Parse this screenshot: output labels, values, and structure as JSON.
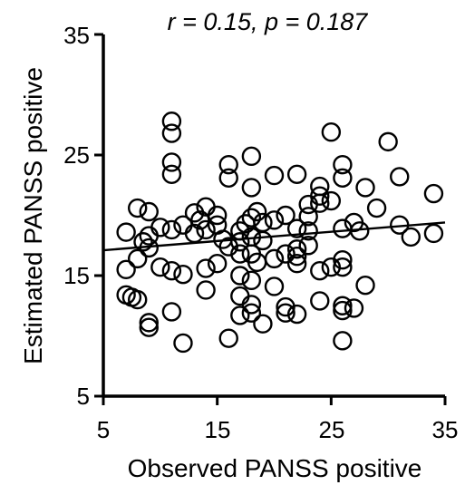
{
  "chart_data": {
    "type": "scatter",
    "title": "",
    "annotation": "r = 0.15, p = 0.187",
    "xlabel": "Observed PANSS positive",
    "ylabel": "Estimated PANSS positive",
    "xlim": [
      5,
      35
    ],
    "ylim": [
      5,
      35
    ],
    "xticks": [
      "5",
      "15",
      "25",
      "35"
    ],
    "yticks": [
      "5",
      "15",
      "25",
      "35"
    ],
    "grid": false,
    "legend": "none",
    "marker": "open-circle",
    "colors": {
      "marker": "#000000",
      "axis": "#000000",
      "fit_line": "#000000"
    },
    "fit_line": {
      "x": [
        5,
        35
      ],
      "y": [
        17.1,
        19.4
      ]
    },
    "points": [
      {
        "x": 11,
        "y": 27.8
      },
      {
        "x": 11,
        "y": 26.8
      },
      {
        "x": 11,
        "y": 24.4
      },
      {
        "x": 11,
        "y": 23.4
      },
      {
        "x": 30,
        "y": 26.1
      },
      {
        "x": 25,
        "y": 26.9
      },
      {
        "x": 18,
        "y": 24.9
      },
      {
        "x": 16,
        "y": 24.2
      },
      {
        "x": 26,
        "y": 24.2
      },
      {
        "x": 16,
        "y": 23.1
      },
      {
        "x": 18,
        "y": 22.3
      },
      {
        "x": 20,
        "y": 23.3
      },
      {
        "x": 22,
        "y": 23.4
      },
      {
        "x": 24,
        "y": 22.4
      },
      {
        "x": 24,
        "y": 21.6
      },
      {
        "x": 26,
        "y": 23.1
      },
      {
        "x": 31,
        "y": 23.2
      },
      {
        "x": 28,
        "y": 22.3
      },
      {
        "x": 34,
        "y": 21.8
      },
      {
        "x": 29,
        "y": 20.6
      },
      {
        "x": 8,
        "y": 20.6
      },
      {
        "x": 9,
        "y": 20.3
      },
      {
        "x": 13,
        "y": 20.2
      },
      {
        "x": 13.5,
        "y": 19.6
      },
      {
        "x": 14,
        "y": 20.7
      },
      {
        "x": 15,
        "y": 20.0
      },
      {
        "x": 12,
        "y": 19.2
      },
      {
        "x": 11,
        "y": 18.8
      },
      {
        "x": 7,
        "y": 18.6
      },
      {
        "x": 8.5,
        "y": 17.8
      },
      {
        "x": 9,
        "y": 18.3
      },
      {
        "x": 10,
        "y": 19.0
      },
      {
        "x": 13,
        "y": 18.5
      },
      {
        "x": 14,
        "y": 18.8
      },
      {
        "x": 15,
        "y": 19.2
      },
      {
        "x": 15.5,
        "y": 18.0
      },
      {
        "x": 16,
        "y": 17.4
      },
      {
        "x": 17,
        "y": 18.7
      },
      {
        "x": 17,
        "y": 17.8
      },
      {
        "x": 17.5,
        "y": 19.3
      },
      {
        "x": 18,
        "y": 18.2
      },
      {
        "x": 18,
        "y": 19.8
      },
      {
        "x": 18.5,
        "y": 20.3
      },
      {
        "x": 19,
        "y": 19.4
      },
      {
        "x": 19,
        "y": 17.9
      },
      {
        "x": 20,
        "y": 19.6
      },
      {
        "x": 21,
        "y": 20.0
      },
      {
        "x": 22,
        "y": 18.9
      },
      {
        "x": 22,
        "y": 17.2
      },
      {
        "x": 23,
        "y": 18.7
      },
      {
        "x": 23,
        "y": 19.9
      },
      {
        "x": 23,
        "y": 20.9
      },
      {
        "x": 24,
        "y": 21.0
      },
      {
        "x": 25,
        "y": 21.2
      },
      {
        "x": 26,
        "y": 18.9
      },
      {
        "x": 27,
        "y": 19.4
      },
      {
        "x": 27.5,
        "y": 18.7
      },
      {
        "x": 31,
        "y": 19.2
      },
      {
        "x": 32,
        "y": 18.2
      },
      {
        "x": 34,
        "y": 18.5
      },
      {
        "x": 17,
        "y": 16.8
      },
      {
        "x": 18,
        "y": 16.8
      },
      {
        "x": 18.5,
        "y": 16.1
      },
      {
        "x": 20,
        "y": 16.4
      },
      {
        "x": 21,
        "y": 16.8
      },
      {
        "x": 22,
        "y": 16.6
      },
      {
        "x": 22,
        "y": 16.0
      },
      {
        "x": 23,
        "y": 17.5
      },
      {
        "x": 24,
        "y": 15.4
      },
      {
        "x": 25,
        "y": 15.7
      },
      {
        "x": 26,
        "y": 16.3
      },
      {
        "x": 26,
        "y": 15.7
      },
      {
        "x": 8,
        "y": 16.4
      },
      {
        "x": 7,
        "y": 15.5
      },
      {
        "x": 9,
        "y": 17.3
      },
      {
        "x": 10,
        "y": 15.7
      },
      {
        "x": 11,
        "y": 15.4
      },
      {
        "x": 12,
        "y": 15.1
      },
      {
        "x": 14,
        "y": 15.6
      },
      {
        "x": 15,
        "y": 16.0
      },
      {
        "x": 17,
        "y": 15.0
      },
      {
        "x": 18,
        "y": 14.6
      },
      {
        "x": 20,
        "y": 14.1
      },
      {
        "x": 28,
        "y": 14.2
      },
      {
        "x": 7,
        "y": 13.4
      },
      {
        "x": 7.5,
        "y": 13.2
      },
      {
        "x": 8,
        "y": 13.0
      },
      {
        "x": 14,
        "y": 13.8
      },
      {
        "x": 17,
        "y": 13.3
      },
      {
        "x": 18,
        "y": 12.6
      },
      {
        "x": 11,
        "y": 12.0
      },
      {
        "x": 17,
        "y": 11.7
      },
      {
        "x": 18,
        "y": 11.9
      },
      {
        "x": 21,
        "y": 12.4
      },
      {
        "x": 21,
        "y": 11.9
      },
      {
        "x": 22,
        "y": 11.8
      },
      {
        "x": 24,
        "y": 12.9
      },
      {
        "x": 26,
        "y": 12.5
      },
      {
        "x": 26,
        "y": 12.1
      },
      {
        "x": 27,
        "y": 12.3
      },
      {
        "x": 9,
        "y": 11.1
      },
      {
        "x": 9,
        "y": 10.7
      },
      {
        "x": 19,
        "y": 11.0
      },
      {
        "x": 16,
        "y": 9.8
      },
      {
        "x": 12,
        "y": 9.4
      },
      {
        "x": 26,
        "y": 9.6
      }
    ]
  }
}
